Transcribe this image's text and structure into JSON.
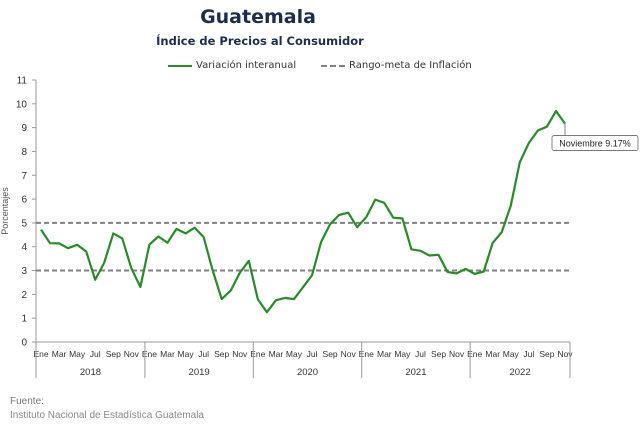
{
  "chart_data": {
    "type": "line",
    "title": "Guatemala",
    "subtitle": "Índice de Precios al Consumidor",
    "xlabel": "",
    "ylabel": "Porcentajes",
    "ylim": [
      0,
      11
    ],
    "yticks": [
      0,
      1,
      2,
      3,
      4,
      5,
      6,
      7,
      8,
      9,
      10,
      11
    ],
    "grid": false,
    "legend_position": "top",
    "month_tick_labels": [
      "Ene",
      "Mar",
      "May",
      "Jul",
      "Sep",
      "Nov"
    ],
    "years": [
      "2018",
      "2019",
      "2020",
      "2021",
      "2022"
    ],
    "x": [
      "2018-01",
      "2018-02",
      "2018-03",
      "2018-04",
      "2018-05",
      "2018-06",
      "2018-07",
      "2018-08",
      "2018-09",
      "2018-10",
      "2018-11",
      "2018-12",
      "2019-01",
      "2019-02",
      "2019-03",
      "2019-04",
      "2019-05",
      "2019-06",
      "2019-07",
      "2019-08",
      "2019-09",
      "2019-10",
      "2019-11",
      "2019-12",
      "2020-01",
      "2020-02",
      "2020-03",
      "2020-04",
      "2020-05",
      "2020-06",
      "2020-07",
      "2020-08",
      "2020-09",
      "2020-10",
      "2020-11",
      "2020-12",
      "2021-01",
      "2021-02",
      "2021-03",
      "2021-04",
      "2021-05",
      "2021-06",
      "2021-07",
      "2021-08",
      "2021-09",
      "2021-10",
      "2021-11",
      "2021-12",
      "2022-01",
      "2022-02",
      "2022-03",
      "2022-04",
      "2022-05",
      "2022-06",
      "2022-07",
      "2022-08",
      "2022-09",
      "2022-10",
      "2022-11"
    ],
    "series": [
      {
        "name": "Variación interanual",
        "color": "#2a8a2a",
        "style": "solid",
        "values": [
          4.72,
          4.15,
          4.14,
          3.94,
          4.08,
          3.8,
          2.61,
          3.33,
          4.56,
          4.35,
          3.1,
          2.31,
          4.09,
          4.43,
          4.17,
          4.75,
          4.56,
          4.8,
          4.41,
          3.0,
          1.8,
          2.16,
          2.9,
          3.41,
          1.8,
          1.25,
          1.75,
          1.85,
          1.8,
          2.3,
          2.8,
          4.2,
          4.95,
          5.33,
          5.43,
          4.82,
          5.24,
          5.98,
          5.84,
          5.22,
          5.19,
          3.89,
          3.83,
          3.63,
          3.66,
          2.94,
          2.88,
          3.07,
          2.86,
          2.96,
          4.16,
          4.62,
          5.73,
          7.55,
          8.36,
          8.88,
          9.04,
          9.7,
          9.17
        ]
      },
      {
        "name": "Rango-meta de Inflación",
        "color": "#808080",
        "style": "dashed",
        "bands": [
          3,
          5
        ]
      }
    ],
    "annotation": {
      "text": "Noviembre 9.17%",
      "x": "2022-11",
      "y": 9.17
    }
  },
  "source": {
    "heading": "Fuente:",
    "text": "Instituto Nacional de Estadística Guatemala"
  }
}
